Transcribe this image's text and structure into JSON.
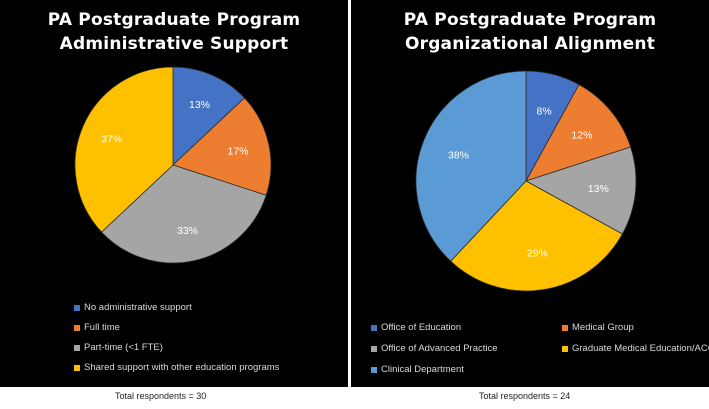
{
  "chart_data": [
    {
      "type": "pie",
      "title": [
        "PA Postgraduate Program",
        "Administrative Support"
      ],
      "legend_position": "bottom",
      "slices": [
        {
          "label": "No administrative support",
          "value": 13,
          "value_label": "13%",
          "color": "#4472C4"
        },
        {
          "label": "Full time",
          "value": 17,
          "value_label": "17%",
          "color": "#ED7D31"
        },
        {
          "label": "Part-time (<1 FTE)",
          "value": 33,
          "value_label": "33%",
          "color": "#A5A5A5"
        },
        {
          "label": "Shared support with other education programs",
          "value": 37,
          "value_label": "37%",
          "color": "#FFC000"
        }
      ],
      "footnote": "Total respondents = 30"
    },
    {
      "type": "pie",
      "title": [
        "PA Postgraduate Program",
        "Organizational Alignment"
      ],
      "legend_position": "bottom",
      "slices": [
        {
          "label": "Office of Education",
          "value": 8,
          "value_label": "8%",
          "color": "#4472C4"
        },
        {
          "label": "Medical Group",
          "value": 12,
          "value_label": "12%",
          "color": "#ED7D31"
        },
        {
          "label": "Office of Advanced Practice",
          "value": 13,
          "value_label": "13%",
          "color": "#A5A5A5"
        },
        {
          "label": "Graduate Medical Education/ACGME",
          "value": 29,
          "value_label": "29%",
          "color": "#FFC000"
        },
        {
          "label": "Clinical Department",
          "value": 38,
          "value_label": "38%",
          "color": "#5B9BD5"
        }
      ],
      "footnote": "Total respondents = 24"
    }
  ]
}
